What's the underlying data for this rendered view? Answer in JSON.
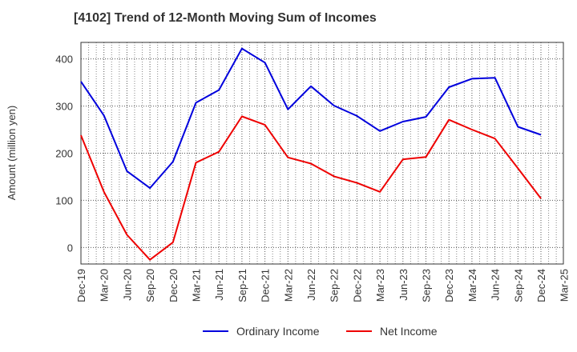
{
  "chart_data": {
    "type": "line",
    "title": "[4102]  Trend of 12-Month Moving Sum of Incomes",
    "xlabel": "",
    "ylabel": "Amount (million yen)",
    "ylim": [
      -35,
      435
    ],
    "yticks": [
      0,
      100,
      200,
      300,
      400
    ],
    "grid": true,
    "legend_position": "bottom-center",
    "categories": [
      "Dec-19",
      "Mar-20",
      "Jun-20",
      "Sep-20",
      "Dec-20",
      "Mar-21",
      "Jun-21",
      "Sep-21",
      "Dec-21",
      "Mar-22",
      "Jun-22",
      "Sep-22",
      "Dec-22",
      "Mar-23",
      "Jun-23",
      "Sep-23",
      "Dec-23",
      "Mar-24",
      "Jun-24",
      "Sep-24",
      "Dec-24",
      "Mar-25"
    ],
    "series": [
      {
        "name": "Ordinary Income",
        "color": "#0000dd",
        "values": [
          352,
          280,
          162,
          126,
          182,
          307,
          334,
          422,
          392,
          293,
          342,
          301,
          279,
          247,
          267,
          277,
          340,
          358,
          360,
          256,
          239,
          null
        ]
      },
      {
        "name": "Net Income",
        "color": "#ee0000",
        "values": [
          238,
          118,
          27,
          -26,
          11,
          180,
          203,
          278,
          260,
          191,
          178,
          151,
          137,
          118,
          187,
          192,
          271,
          250,
          231,
          168,
          104,
          null
        ]
      }
    ]
  }
}
